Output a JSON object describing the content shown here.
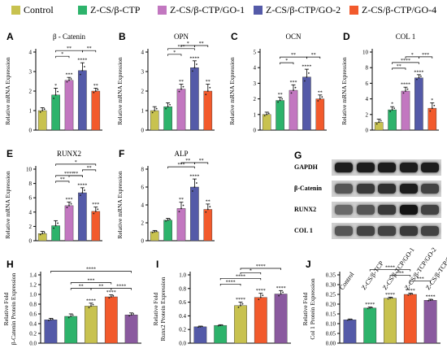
{
  "legend": {
    "items": [
      {
        "label": "Control",
        "color": "#c8c24f"
      },
      {
        "label": "Z-CS/β-CTP",
        "color": "#2db36b"
      },
      {
        "label": "Z-CS/β-CTP/GO-1",
        "color": "#c277c0"
      },
      {
        "label": "Z-CS/β-CTP/GO-2",
        "color": "#545aa8"
      },
      {
        "label": "Z-CS/β-CTP/GO-4",
        "color": "#f25a2c"
      }
    ]
  },
  "western_blot": {
    "letter": "G",
    "rows": [
      "GAPDH",
      "β-Catenin",
      "RUNX2",
      "COL 1"
    ],
    "lanes": [
      "Control",
      "Z-CS/β-TCP",
      "Z-CS/β-TCP/GO-1",
      "Z-CS/β-TCP/GO-2",
      "Z-CS/β-TCP/GO-4"
    ],
    "band_intensity": [
      [
        0.9,
        0.9,
        0.9,
        0.9,
        0.9
      ],
      [
        0.6,
        0.75,
        0.8,
        0.9,
        0.7
      ],
      [
        0.5,
        0.6,
        0.75,
        0.95,
        0.7
      ],
      [
        0.6,
        0.7,
        0.7,
        0.75,
        0.7
      ]
    ]
  },
  "chart_data": [
    {
      "letter": "A",
      "type": "bar",
      "title": "β - Catenin",
      "ylabel": "Relative mRNA Expression",
      "ylim": [
        0,
        4
      ],
      "yticks": [
        0,
        1,
        2,
        3,
        4
      ],
      "yticklabels": [
        "0",
        "1",
        "2",
        "3",
        "4"
      ],
      "colors": [
        "#c8c24f",
        "#2db36b",
        "#c277c0",
        "#545aa8",
        "#f25a2c"
      ],
      "values": [
        1.0,
        1.8,
        2.55,
        3.05,
        2.0
      ],
      "errors": [
        0.15,
        0.35,
        0.15,
        0.4,
        0.15
      ],
      "bar_labels": [
        "",
        "*",
        "***",
        "****",
        "**"
      ],
      "brackets": [
        {
          "from": 1,
          "to": 2,
          "level": 0,
          "label": "*"
        },
        {
          "from": 1,
          "to": 3,
          "level": 1,
          "label": "**"
        },
        {
          "from": 3,
          "to": 4,
          "level": 1,
          "label": "**"
        }
      ]
    },
    {
      "letter": "B",
      "type": "bar",
      "title": "OPN",
      "ylabel": "Relative mRNA Expression",
      "ylim": [
        0,
        4
      ],
      "yticks": [
        0,
        1,
        2,
        3,
        4
      ],
      "yticklabels": [
        "0",
        "1",
        "2",
        "3",
        "4"
      ],
      "colors": [
        "#c8c24f",
        "#2db36b",
        "#c277c0",
        "#545aa8",
        "#f25a2c"
      ],
      "values": [
        1.0,
        1.2,
        2.1,
        3.2,
        2.0
      ],
      "errors": [
        0.2,
        0.2,
        0.25,
        0.35,
        0.35
      ],
      "bar_labels": [
        "",
        "",
        "**",
        "****",
        "**"
      ],
      "brackets": [
        {
          "from": 1,
          "to": 2,
          "level": 0,
          "label": "*"
        },
        {
          "from": 1,
          "to": 3,
          "level": 1,
          "label": "***"
        },
        {
          "from": 2,
          "to": 3,
          "level": 2,
          "label": "*"
        },
        {
          "from": 3,
          "to": 4,
          "level": 2,
          "label": "**"
        }
      ]
    },
    {
      "letter": "C",
      "type": "bar",
      "title": "OCN",
      "ylabel": "Relative mRNA Expression",
      "ylim": [
        0,
        5
      ],
      "yticks": [
        0,
        1,
        2,
        3,
        4,
        5
      ],
      "yticklabels": [
        "0",
        "1",
        "2",
        "3",
        "4",
        "5"
      ],
      "colors": [
        "#c8c24f",
        "#2db36b",
        "#c277c0",
        "#545aa8",
        "#f25a2c"
      ],
      "values": [
        1.0,
        1.9,
        2.55,
        3.4,
        2.0
      ],
      "errors": [
        0.15,
        0.2,
        0.35,
        0.5,
        0.25
      ],
      "bar_labels": [
        "",
        "**",
        "***",
        "****",
        "**"
      ],
      "brackets": [
        {
          "from": 1,
          "to": 2,
          "level": 0,
          "label": "*"
        },
        {
          "from": 1,
          "to": 3,
          "level": 1,
          "label": "**"
        },
        {
          "from": 3,
          "to": 4,
          "level": 1,
          "label": "**"
        }
      ]
    },
    {
      "letter": "D",
      "type": "bar",
      "title": "COL 1",
      "ylabel": "Relative mRNA Expression",
      "ylim": [
        0,
        10
      ],
      "yticks": [
        0,
        2,
        4,
        6,
        8,
        10
      ],
      "yticklabels": [
        "0",
        "2",
        "4",
        "6",
        "8",
        "10"
      ],
      "colors": [
        "#c8c24f",
        "#2db36b",
        "#c277c0",
        "#545aa8",
        "#f25a2c"
      ],
      "values": [
        1.0,
        2.6,
        5.0,
        6.7,
        2.8
      ],
      "errors": [
        0.4,
        0.4,
        0.5,
        0.4,
        0.7
      ],
      "bar_labels": [
        "",
        "*",
        "****",
        "****",
        "*"
      ],
      "brackets": [
        {
          "from": 1,
          "to": 2,
          "level": 0,
          "label": "**"
        },
        {
          "from": 1,
          "to": 3,
          "level": 1,
          "label": "****"
        },
        {
          "from": 2,
          "to": 3,
          "level": 2,
          "label": "*"
        },
        {
          "from": 3,
          "to": 4,
          "level": 2,
          "label": "***"
        }
      ]
    },
    {
      "letter": "E",
      "type": "bar",
      "title": "RUNX2",
      "ylabel": "Relative mRNA Expression",
      "ylim": [
        0,
        10
      ],
      "yticks": [
        0,
        2,
        4,
        6,
        8,
        10
      ],
      "yticklabels": [
        "0",
        "2",
        "4",
        "6",
        "8",
        "10"
      ],
      "colors": [
        "#c8c24f",
        "#2db36b",
        "#c277c0",
        "#545aa8",
        "#f25a2c"
      ],
      "values": [
        1.0,
        2.1,
        4.9,
        6.7,
        4.1
      ],
      "errors": [
        0.3,
        0.7,
        0.5,
        0.7,
        0.6
      ],
      "bar_labels": [
        "",
        "",
        "***",
        "****",
        "***"
      ],
      "brackets": [
        {
          "from": 1,
          "to": 2,
          "level": 0,
          "label": "**"
        },
        {
          "from": 1,
          "to": 3,
          "level": 1,
          "label": "****"
        },
        {
          "from": 1,
          "to": 4,
          "level": 3,
          "label": "*"
        },
        {
          "from": 2,
          "to": 3,
          "level": 1,
          "label": "**"
        },
        {
          "from": 3,
          "to": 4,
          "level": 2,
          "label": "**"
        }
      ]
    },
    {
      "letter": "F",
      "type": "bar",
      "title": "ALP",
      "ylabel": "Relative mRNA Expression",
      "ylim": [
        0,
        8
      ],
      "yticks": [
        0,
        2,
        4,
        6,
        8
      ],
      "yticklabels": [
        "0",
        "2",
        "4",
        "6",
        "8"
      ],
      "colors": [
        "#c8c24f",
        "#2db36b",
        "#c277c0",
        "#545aa8",
        "#f25a2c"
      ],
      "values": [
        1.0,
        2.3,
        3.6,
        6.0,
        3.5
      ],
      "errors": [
        0.15,
        0.2,
        0.7,
        0.9,
        0.6
      ],
      "bar_labels": [
        "",
        "",
        "**",
        "****",
        "**"
      ],
      "brackets": [
        {
          "from": 1,
          "to": 3,
          "level": 1,
          "label": "***"
        },
        {
          "from": 2,
          "to": 3,
          "level": 2,
          "label": "**"
        },
        {
          "from": 3,
          "to": 4,
          "level": 2,
          "label": "**"
        }
      ]
    },
    {
      "letter": "H",
      "type": "bar",
      "title": "",
      "ylabel": "Relative Fold\nβ-Catenin Protein Expression",
      "ylim": [
        0,
        1.4
      ],
      "yticks": [
        0,
        0.2,
        0.4,
        0.6,
        0.8,
        1.0,
        1.2,
        1.4
      ],
      "yticklabels": [
        "0.0",
        "0.2",
        "0.4",
        "0.6",
        "0.8",
        "1.0",
        "1.2",
        "1.4"
      ],
      "colors": [
        "#545aa8",
        "#2db36b",
        "#c8c24f",
        "#f25a2c",
        "#8a5a9f"
      ],
      "values": [
        0.48,
        0.55,
        0.76,
        0.95,
        0.58
      ],
      "errors": [
        0.03,
        0.05,
        0.06,
        0.04,
        0.04
      ],
      "bar_labels": [
        "",
        "",
        "****",
        "****",
        ""
      ],
      "brackets": [
        {
          "from": 1,
          "to": 2,
          "level": 0,
          "label": "**"
        },
        {
          "from": 2,
          "to": 3,
          "level": 0,
          "label": "**"
        },
        {
          "from": 1,
          "to": 3,
          "level": 1,
          "label": "***"
        },
        {
          "from": 3,
          "to": 4,
          "level": 0,
          "label": "****"
        },
        {
          "from": 0,
          "to": 4,
          "level": 3,
          "label": "****"
        }
      ]
    },
    {
      "letter": "I",
      "type": "bar",
      "title": "",
      "ylabel": "Relative Fold\nRunx2 Protein Expression",
      "ylim": [
        0,
        1.0
      ],
      "yticks": [
        0,
        0.2,
        0.4,
        0.6,
        0.8,
        1.0
      ],
      "yticklabels": [
        "0.0",
        "0.2",
        "0.4",
        "0.6",
        "0.8",
        "1.0"
      ],
      "colors": [
        "#545aa8",
        "#2db36b",
        "#c8c24f",
        "#f25a2c",
        "#8a5a9f"
      ],
      "values": [
        0.24,
        0.26,
        0.55,
        0.67,
        0.72
      ],
      "errors": [
        0.01,
        0.01,
        0.05,
        0.06,
        0.05
      ],
      "bar_labels": [
        "",
        "",
        "****",
        "****",
        "****"
      ],
      "brackets": [
        {
          "from": 1,
          "to": 2,
          "level": 0,
          "label": "****"
        },
        {
          "from": 1,
          "to": 3,
          "level": 1,
          "label": "****"
        },
        {
          "from": 2,
          "to": 3,
          "level": 2,
          "label": "*"
        },
        {
          "from": 2,
          "to": 4,
          "level": 3,
          "label": "****"
        }
      ]
    },
    {
      "letter": "J",
      "type": "bar",
      "title": "",
      "ylabel": "Relative Fold\nCol 1 Protein Expression",
      "ylim": [
        0,
        0.35
      ],
      "yticks": [
        0,
        0.05,
        0.1,
        0.15,
        0.2,
        0.25,
        0.3,
        0.35
      ],
      "yticklabels": [
        "0.00",
        "0.05",
        "0.10",
        "0.15",
        "0.20",
        "0.25",
        "0.30",
        "0.35"
      ],
      "colors": [
        "#545aa8",
        "#2db36b",
        "#c8c24f",
        "#f25a2c",
        "#8a5a9f"
      ],
      "values": [
        0.12,
        0.18,
        0.23,
        0.25,
        0.22
      ],
      "errors": [
        0.004,
        0.005,
        0.006,
        0.006,
        0.005
      ],
      "bar_labels": [
        "",
        "****",
        "****",
        "****",
        "****"
      ],
      "brackets": [
        {
          "from": 1,
          "to": 3,
          "level": 3,
          "label": "****"
        },
        {
          "from": 2,
          "to": 3,
          "level": 2,
          "label": "***"
        },
        {
          "from": 3,
          "to": 4,
          "level": 1,
          "label": "***"
        }
      ]
    }
  ]
}
